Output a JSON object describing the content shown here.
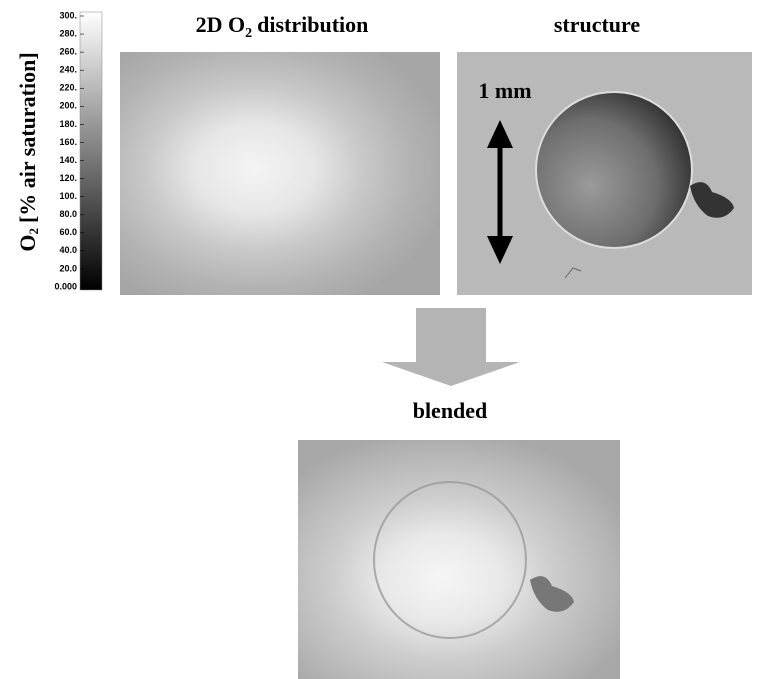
{
  "colorbar": {
    "label": {
      "prefix": "O",
      "subscript": "2",
      "suffix": "[% air saturation]"
    },
    "ticks": [
      "300.",
      "280.",
      "260.",
      "240.",
      "220.",
      "200.",
      "180.",
      "160.",
      "140.",
      "120.",
      "100.",
      "80.0",
      "60.0",
      "40.0",
      "20.0",
      "0.000"
    ]
  },
  "panels": {
    "distribution": {
      "title": {
        "prefix": "2D O",
        "subscript": "2",
        "suffix": "distribution"
      }
    },
    "structure": {
      "title": "structure",
      "scale_label": "1 mm"
    },
    "blended": {
      "title": "blended"
    }
  }
}
